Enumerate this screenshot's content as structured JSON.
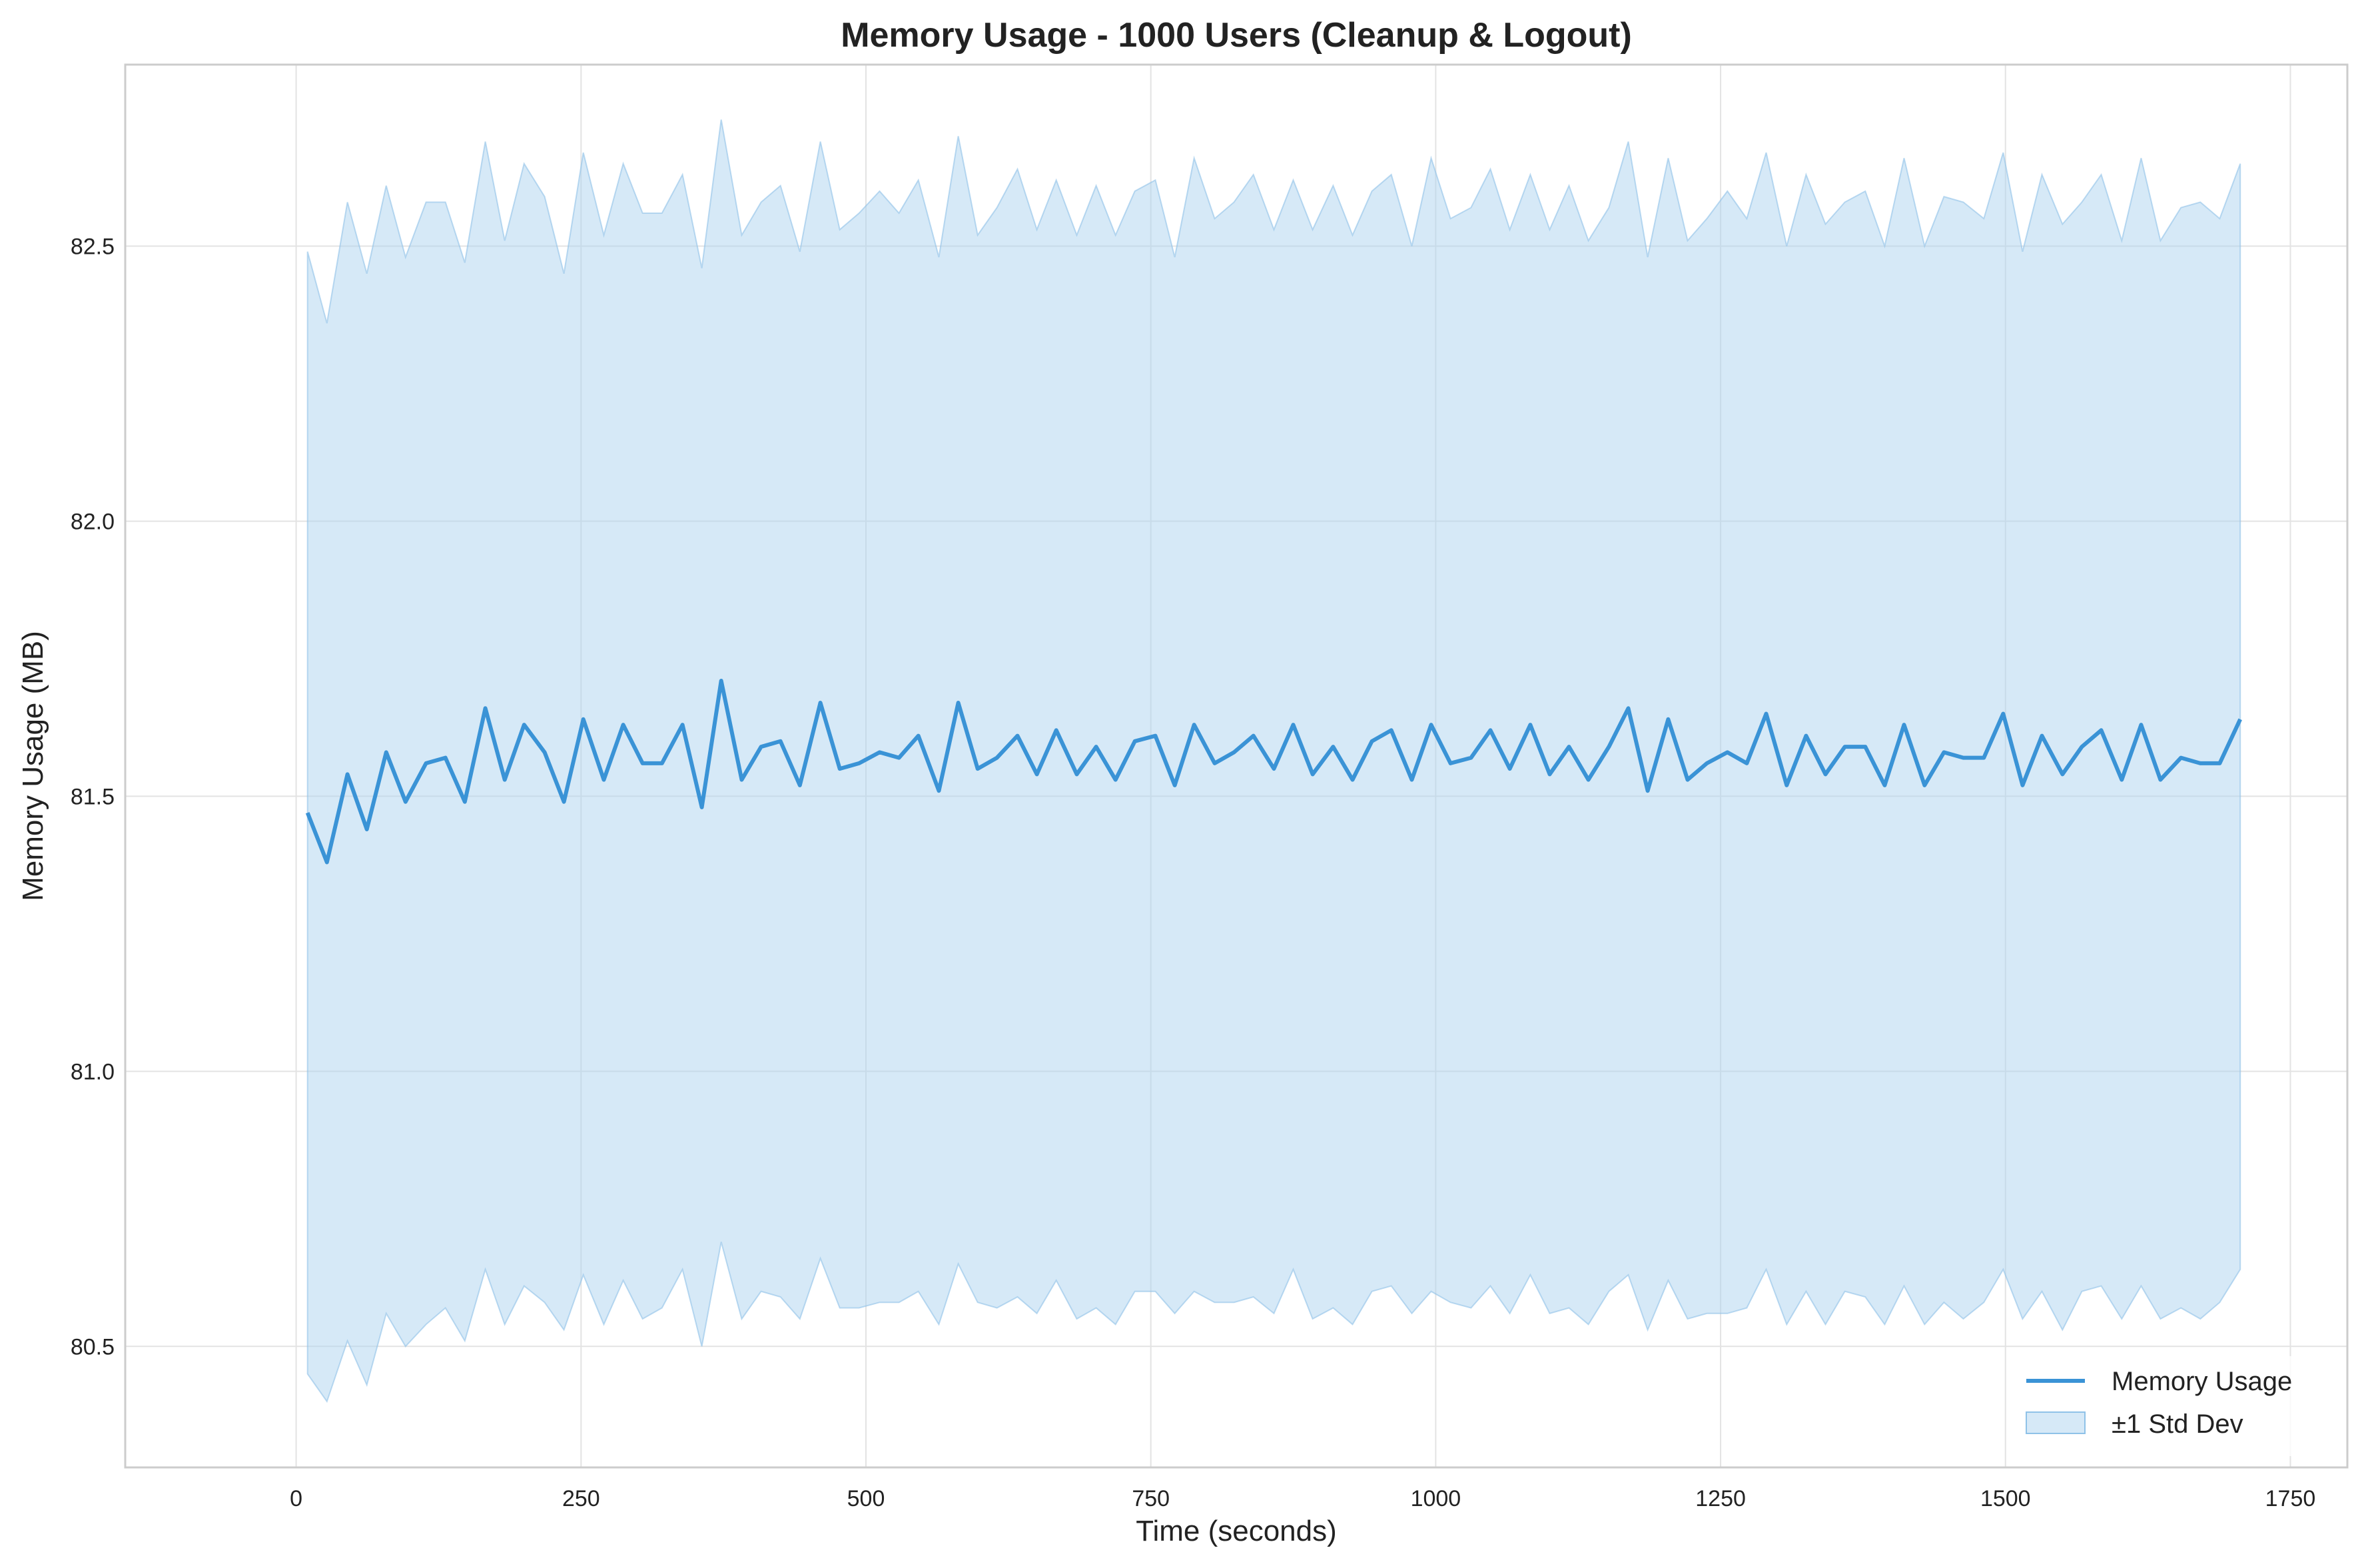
{
  "chart_data": {
    "type": "line",
    "title": "Memory Usage - 1000 Users (Cleanup & Logout)",
    "xlabel": "Time (seconds)",
    "ylabel": "Memory Usage (MB)",
    "xlim": [
      -150,
      1800
    ],
    "ylim": [
      80.28,
      82.83
    ],
    "xticks": [
      0,
      250,
      500,
      750,
      1000,
      1250,
      1500,
      1750
    ],
    "yticks": [
      80.5,
      81.0,
      81.5,
      82.0,
      82.5
    ],
    "ytick_labels": [
      "80.5",
      "81.0",
      "81.5",
      "82.0",
      "82.5"
    ],
    "grid": true,
    "legend_position": "lower-right",
    "colors": {
      "line": "#3a93d6",
      "band": "#aed3f0",
      "band_edge": "#8fc2e8"
    },
    "x": [
      10,
      27,
      45,
      62,
      79,
      96,
      114,
      131,
      148,
      166,
      183,
      200,
      218,
      235,
      252,
      270,
      287,
      304,
      321,
      339,
      356,
      373,
      391,
      408,
      425,
      442,
      460,
      477,
      494,
      512,
      529,
      546,
      564,
      581,
      598,
      615,
      633,
      650,
      667,
      685,
      702,
      719,
      736,
      754,
      771,
      788,
      806,
      823,
      840,
      858,
      875,
      892,
      910,
      927,
      944,
      961,
      979,
      996,
      1013,
      1031,
      1048,
      1065,
      1083,
      1100,
      1117,
      1134,
      1152,
      1169,
      1186,
      1204,
      1221,
      1238,
      1256,
      1273,
      1290,
      1308,
      1325,
      1342,
      1359,
      1377,
      1394,
      1411,
      1429,
      1446,
      1463,
      1481,
      1498,
      1515,
      1532,
      1550,
      1567,
      1584,
      1602,
      1619,
      1636,
      1654,
      1671,
      1688,
      1706
    ],
    "series": [
      {
        "name": "Memory Usage",
        "values": [
          81.47,
          81.38,
          81.54,
          81.44,
          81.58,
          81.49,
          81.56,
          81.57,
          81.49,
          81.66,
          81.53,
          81.63,
          81.58,
          81.49,
          81.64,
          81.53,
          81.63,
          81.56,
          81.56,
          81.63,
          81.48,
          81.71,
          81.53,
          81.59,
          81.6,
          81.52,
          81.67,
          81.55,
          81.56,
          81.58,
          81.57,
          81.61,
          81.51,
          81.67,
          81.55,
          81.57,
          81.61,
          81.54,
          81.62,
          81.54,
          81.59,
          81.53,
          81.6,
          81.61,
          81.52,
          81.63,
          81.56,
          81.58,
          81.61,
          81.55,
          81.63,
          81.54,
          81.59,
          81.53,
          81.6,
          81.62,
          81.53,
          81.63,
          81.56,
          81.57,
          81.62,
          81.55,
          81.63,
          81.54,
          81.59,
          81.53,
          81.59,
          81.66,
          81.51,
          81.64,
          81.53,
          81.56,
          81.58,
          81.56,
          81.65,
          81.52,
          81.61,
          81.54,
          81.59,
          81.59,
          81.52,
          81.63,
          81.52,
          81.58,
          81.57,
          81.57,
          81.65,
          81.52,
          81.61,
          81.54,
          81.59,
          81.62,
          81.53,
          81.63,
          81.53,
          81.57,
          81.56,
          81.56,
          81.64
        ]
      },
      {
        "name": "±1 Std Dev",
        "upper": [
          82.49,
          82.36,
          82.58,
          82.45,
          82.61,
          82.48,
          82.58,
          82.58,
          82.47,
          82.69,
          82.51,
          82.65,
          82.59,
          82.45,
          82.67,
          82.52,
          82.65,
          82.56,
          82.56,
          82.63,
          82.46,
          82.73,
          82.52,
          82.58,
          82.61,
          82.49,
          82.69,
          82.53,
          82.56,
          82.6,
          82.56,
          82.62,
          82.48,
          82.7,
          82.52,
          82.57,
          82.64,
          82.53,
          82.62,
          82.52,
          82.61,
          82.52,
          82.6,
          82.62,
          82.48,
          82.66,
          82.55,
          82.58,
          82.63,
          82.53,
          82.62,
          82.53,
          82.61,
          82.52,
          82.6,
          82.63,
          82.5,
          82.66,
          82.55,
          82.57,
          82.64,
          82.53,
          82.63,
          82.53,
          82.61,
          82.51,
          82.57,
          82.69,
          82.48,
          82.66,
          82.51,
          82.55,
          82.6,
          82.55,
          82.67,
          82.5,
          82.63,
          82.54,
          82.58,
          82.6,
          82.5,
          82.66,
          82.5,
          82.59,
          82.58,
          82.55,
          82.67,
          82.49,
          82.63,
          82.54,
          82.58,
          82.63,
          82.51,
          82.66,
          82.51,
          82.57,
          82.58,
          82.55,
          82.65
        ],
        "lower": [
          80.45,
          80.4,
          80.51,
          80.43,
          80.56,
          80.5,
          80.54,
          80.57,
          80.51,
          80.64,
          80.54,
          80.61,
          80.58,
          80.53,
          80.63,
          80.54,
          80.62,
          80.55,
          80.57,
          80.64,
          80.5,
          80.69,
          80.55,
          80.6,
          80.59,
          80.55,
          80.66,
          80.57,
          80.57,
          80.58,
          80.58,
          80.6,
          80.54,
          80.65,
          80.58,
          80.57,
          80.59,
          80.56,
          80.62,
          80.55,
          80.57,
          80.54,
          80.6,
          80.6,
          80.56,
          80.6,
          80.58,
          80.58,
          80.59,
          80.56,
          80.64,
          80.55,
          80.57,
          80.54,
          80.6,
          80.61,
          80.56,
          80.6,
          80.58,
          80.57,
          80.61,
          80.56,
          80.63,
          80.56,
          80.57,
          80.54,
          80.6,
          80.63,
          80.53,
          80.62,
          80.55,
          80.56,
          80.56,
          80.57,
          80.64,
          80.54,
          80.6,
          80.54,
          80.6,
          80.59,
          80.54,
          80.61,
          80.54,
          80.58,
          80.55,
          80.58,
          80.64,
          80.55,
          80.6,
          80.53,
          80.6,
          80.61,
          80.55,
          80.61,
          80.55,
          80.57,
          80.55,
          80.58,
          80.64
        ]
      }
    ]
  }
}
